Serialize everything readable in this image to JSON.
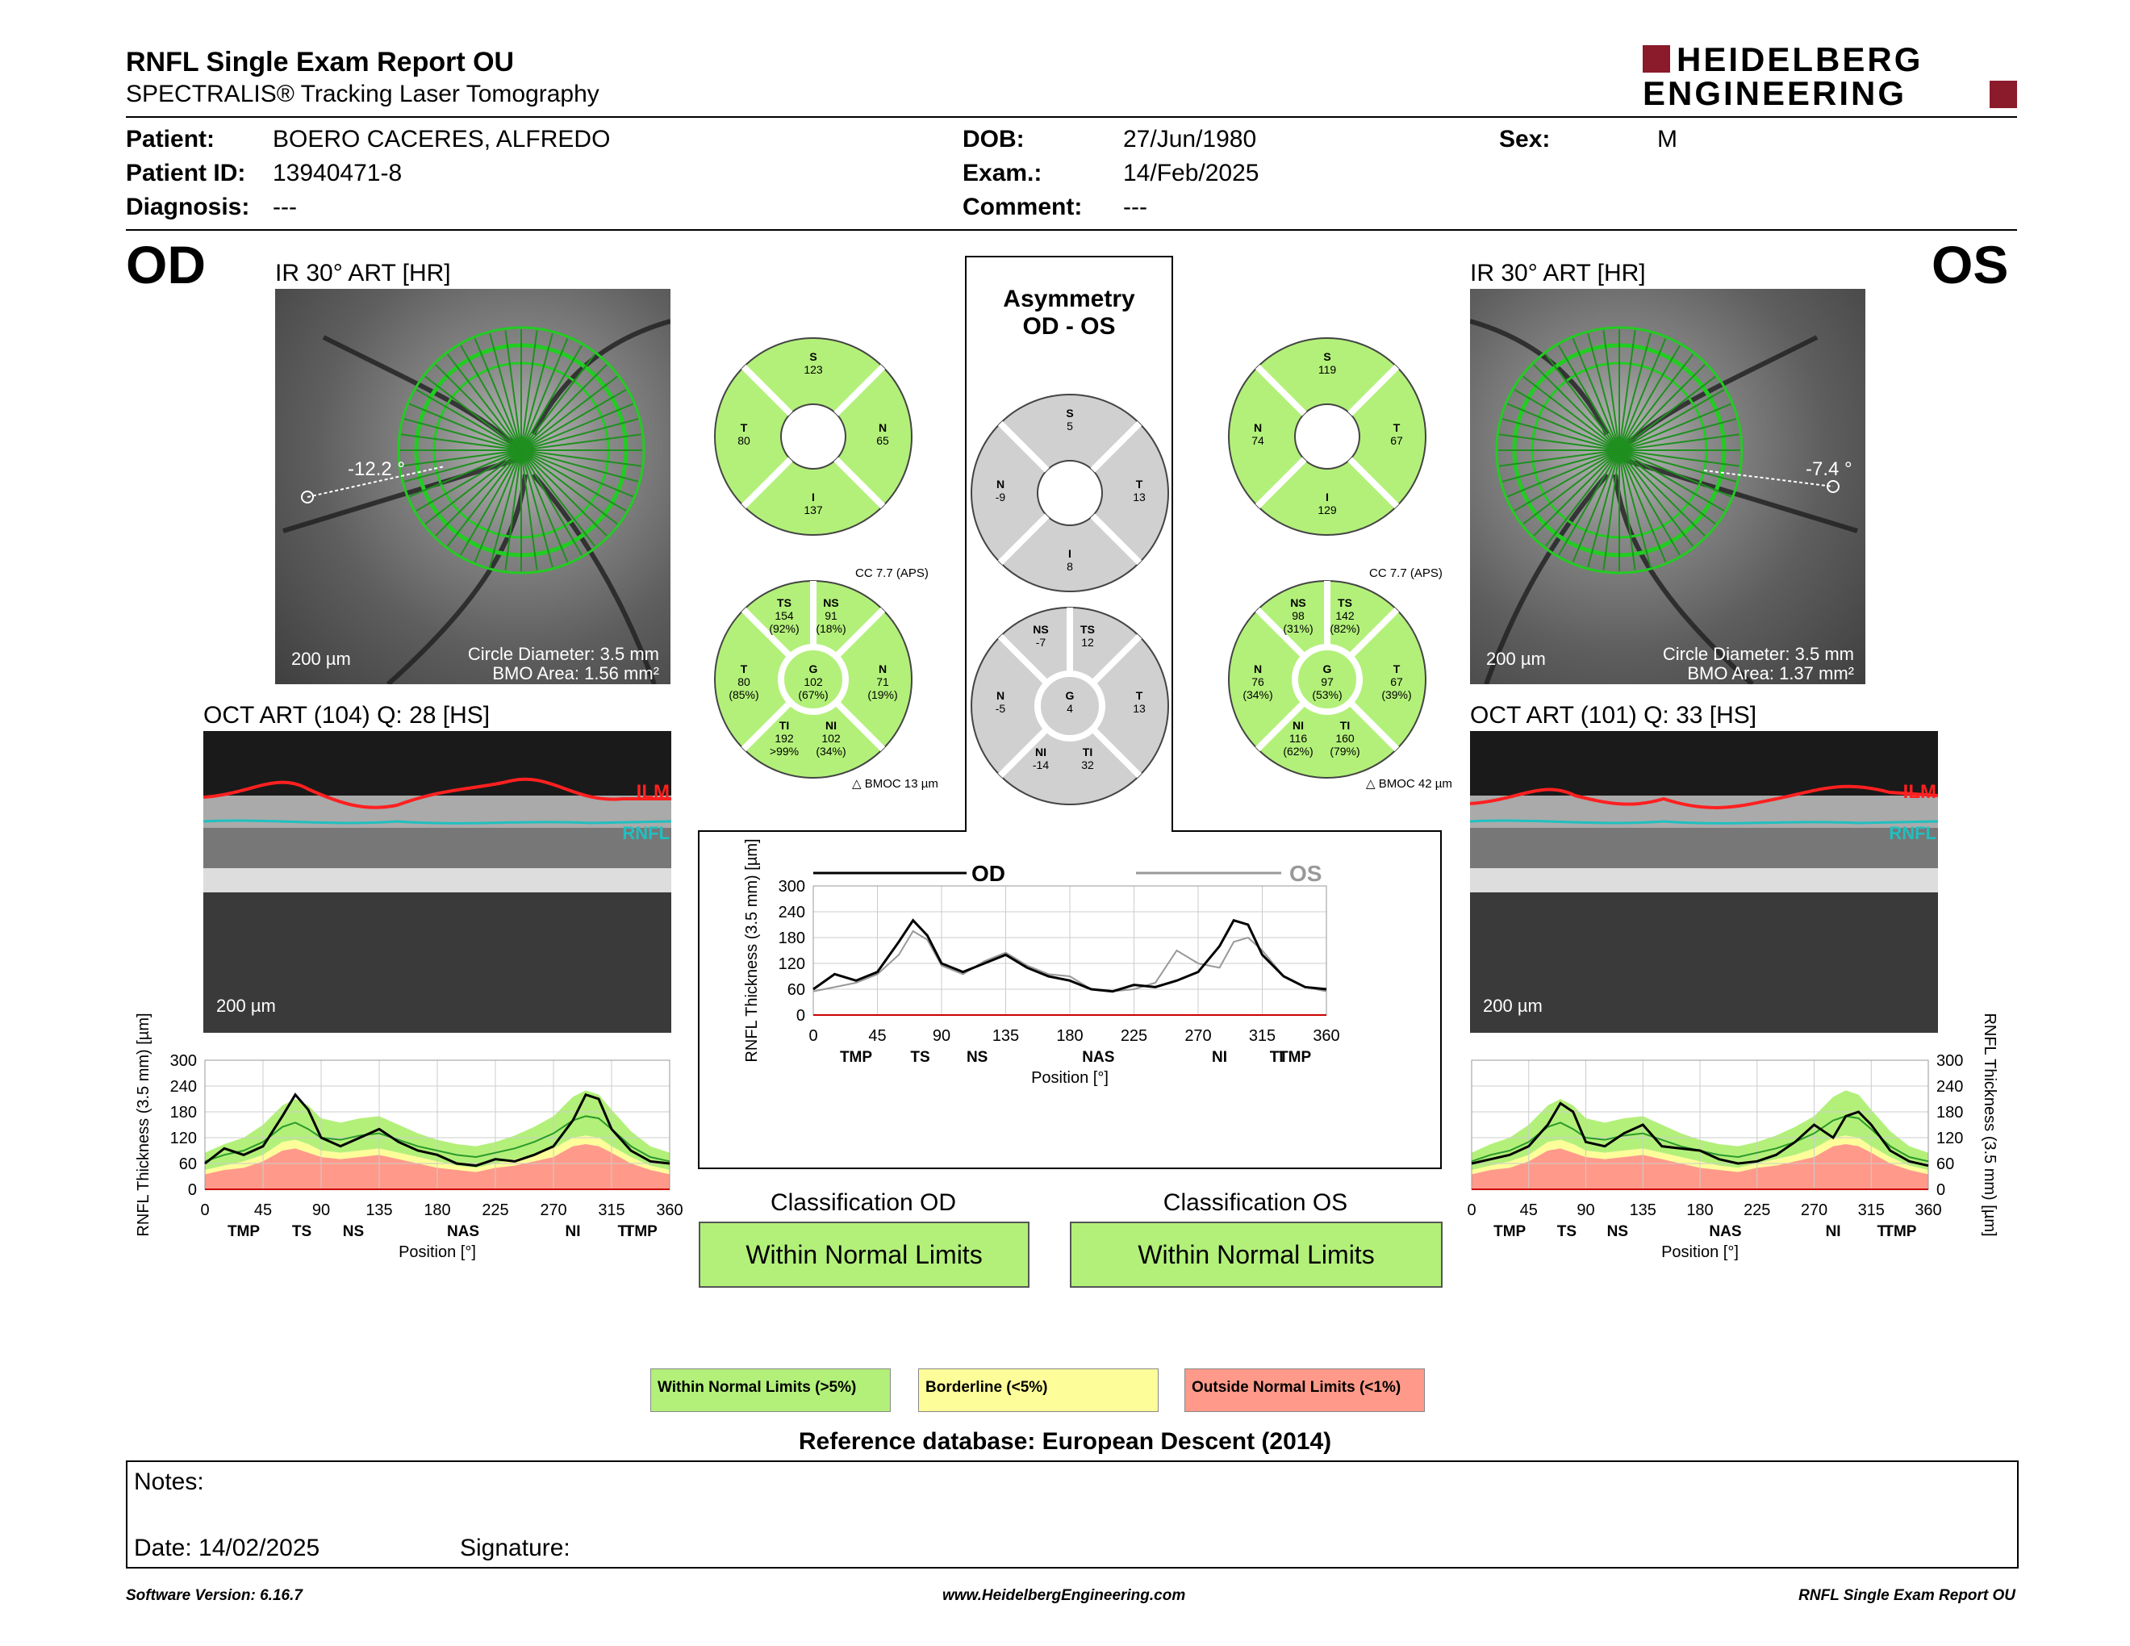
{
  "header": {
    "title": "RNFL Single Exam Report OU",
    "subtitle": "SPECTRALIS® Tracking Laser Tomography",
    "logo_line1": "HEIDELBERG",
    "logo_line2": "ENGINEERING"
  },
  "patient": {
    "patient_label": "Patient:",
    "patient_value": "BOERO CACERES, ALFREDO",
    "id_label": "Patient ID:",
    "id_value": "13940471-8",
    "diagnosis_label": "Diagnosis:",
    "diagnosis_value": "---",
    "dob_label": "DOB:",
    "dob_value": "27/Jun/1980",
    "exam_label": "Exam.:",
    "exam_value": "14/Feb/2025",
    "comment_label": "Comment:",
    "comment_value": "---",
    "sex_label": "Sex:",
    "sex_value": "M"
  },
  "od": {
    "eye": "OD",
    "ir_title": "IR 30° ART [HR]",
    "angle": "-12.2 °",
    "scale": "200 µm",
    "circle_diameter": "Circle Diameter: 3.5 mm",
    "bmo_area": "BMO Area: 1.56 mm²",
    "oct_title": "OCT ART (104) Q: 28 [HS]",
    "oct_scale": "200 µm",
    "ilm": "ILM",
    "rnfl": "RNFL",
    "cc": "CC 7.7 (APS)",
    "bmoc": "BMOC 13 µm",
    "classification_title": "Classification OD",
    "classification": "Within Normal Limits",
    "quad": {
      "S": "123",
      "T": "80",
      "N": "65",
      "I": "137"
    },
    "sect": {
      "TS": [
        "154",
        "(92%)"
      ],
      "NS": [
        "91",
        "(18%)"
      ],
      "T": [
        "80",
        "(85%)"
      ],
      "G": [
        "102",
        "(67%)"
      ],
      "N": [
        "71",
        "(19%)"
      ],
      "TI": [
        "192",
        ">99%"
      ],
      "NI": [
        "102",
        "(34%)"
      ]
    }
  },
  "os": {
    "eye": "OS",
    "ir_title": "IR 30° ART [HR]",
    "angle": "-7.4 °",
    "scale": "200 µm",
    "circle_diameter": "Circle Diameter: 3.5 mm",
    "bmo_area": "BMO Area: 1.37 mm²",
    "oct_title": "OCT ART (101) Q: 33 [HS]",
    "oct_scale": "200 µm",
    "ilm": "ILM",
    "rnfl": "RNFL",
    "cc": "CC 7.7 (APS)",
    "bmoc": "BMOC 42 µm",
    "classification_title": "Classification OS",
    "classification": "Within Normal Limits",
    "quad": {
      "S": "119",
      "N": "74",
      "T": "67",
      "I": "129"
    },
    "sect": {
      "NS": [
        "98",
        "(31%)"
      ],
      "TS": [
        "142",
        "(82%)"
      ],
      "N": [
        "76",
        "(34%)"
      ],
      "G": [
        "97",
        "(53%)"
      ],
      "T": [
        "67",
        "(39%)"
      ],
      "NI": [
        "116",
        "(62%)"
      ],
      "TI": [
        "160",
        "(79%)"
      ]
    }
  },
  "asym": {
    "title1": "Asymmetry",
    "title2": "OD - OS",
    "quad": {
      "S": "5",
      "N": "-9",
      "T": "13",
      "I": "8"
    },
    "sect": {
      "NS": "-7",
      "TS": "12",
      "N": "-5",
      "G": "4",
      "T": "13",
      "NI": "-14",
      "TI": "32"
    }
  },
  "colors": {
    "normal": "#b3f07a",
    "borderline": "#fdfd9a",
    "outside": "#ff9a8a",
    "asym": "#d0d0d0",
    "od_line": "#000000",
    "os_line": "#999999",
    "mean": "#2a9a2a"
  },
  "chart_data": [
    {
      "type": "line",
      "name": "rnfl-profile-od",
      "xlabel": "Position [°]",
      "ylabel": "RNFL Thickness (3.5 mm) [µm]",
      "xlim": [
        0,
        360
      ],
      "ylim": [
        0,
        300
      ],
      "xticks": [
        0,
        45,
        90,
        135,
        180,
        225,
        270,
        315,
        360
      ],
      "yticks": [
        0,
        60,
        120,
        180,
        240,
        300
      ],
      "sectors": [
        "TMP",
        "TS",
        "NS",
        "NAS",
        "NI",
        "TI",
        "TMP"
      ],
      "x": [
        0,
        15,
        30,
        45,
        60,
        70,
        80,
        90,
        105,
        120,
        135,
        150,
        165,
        180,
        195,
        210,
        225,
        240,
        255,
        270,
        285,
        295,
        305,
        315,
        330,
        345,
        360
      ],
      "measured": [
        60,
        95,
        80,
        100,
        170,
        220,
        185,
        120,
        100,
        120,
        140,
        110,
        90,
        80,
        60,
        55,
        70,
        65,
        80,
        100,
        160,
        220,
        210,
        140,
        90,
        65,
        60
      ],
      "mean": [
        65,
        80,
        90,
        110,
        145,
        155,
        140,
        120,
        115,
        125,
        130,
        115,
        100,
        90,
        80,
        75,
        85,
        95,
        110,
        130,
        160,
        170,
        165,
        140,
        100,
        75,
        65
      ],
      "p5": [
        45,
        55,
        65,
        80,
        110,
        115,
        105,
        90,
        85,
        90,
        95,
        85,
        75,
        65,
        55,
        50,
        60,
        70,
        80,
        95,
        120,
        125,
        120,
        100,
        75,
        55,
        45
      ],
      "p1": [
        35,
        45,
        50,
        65,
        90,
        95,
        85,
        75,
        70,
        75,
        80,
        70,
        60,
        50,
        45,
        40,
        50,
        55,
        65,
        75,
        100,
        105,
        100,
        85,
        60,
        45,
        35
      ],
      "p95": [
        85,
        105,
        120,
        150,
        195,
        210,
        195,
        165,
        155,
        165,
        170,
        150,
        130,
        115,
        105,
        100,
        110,
        125,
        145,
        170,
        215,
        230,
        220,
        185,
        135,
        100,
        85
      ]
    },
    {
      "type": "line",
      "name": "rnfl-profile-os",
      "xlabel": "Position [°]",
      "ylabel": "RNFL Thickness (3.5 mm) [µm]",
      "xlim": [
        0,
        360
      ],
      "ylim": [
        0,
        300
      ],
      "xticks": [
        0,
        45,
        90,
        135,
        180,
        225,
        270,
        315,
        360
      ],
      "yticks": [
        0,
        60,
        120,
        180,
        240,
        300
      ],
      "sectors": [
        "TMP",
        "TS",
        "NS",
        "NAS",
        "NI",
        "TI",
        "TMP"
      ],
      "x": [
        0,
        15,
        30,
        45,
        60,
        70,
        80,
        90,
        105,
        120,
        135,
        150,
        165,
        180,
        195,
        210,
        225,
        240,
        255,
        270,
        285,
        295,
        305,
        315,
        330,
        345,
        360
      ],
      "measured": [
        60,
        70,
        80,
        100,
        150,
        200,
        180,
        110,
        100,
        130,
        150,
        100,
        95,
        90,
        70,
        60,
        65,
        80,
        110,
        150,
        120,
        170,
        180,
        150,
        90,
        65,
        55
      ],
      "mean": [
        65,
        80,
        90,
        110,
        145,
        155,
        140,
        120,
        115,
        125,
        130,
        115,
        100,
        90,
        80,
        75,
        85,
        95,
        110,
        130,
        160,
        170,
        165,
        140,
        100,
        75,
        65
      ],
      "p5": [
        45,
        55,
        65,
        80,
        110,
        115,
        105,
        90,
        85,
        90,
        95,
        85,
        75,
        65,
        55,
        50,
        60,
        70,
        80,
        95,
        120,
        125,
        120,
        100,
        75,
        55,
        45
      ],
      "p1": [
        35,
        45,
        50,
        65,
        90,
        95,
        85,
        75,
        70,
        75,
        80,
        70,
        60,
        50,
        45,
        40,
        50,
        55,
        65,
        75,
        100,
        105,
        100,
        85,
        60,
        45,
        35
      ],
      "p95": [
        85,
        105,
        120,
        150,
        195,
        210,
        195,
        165,
        155,
        165,
        170,
        150,
        130,
        115,
        105,
        100,
        110,
        125,
        145,
        170,
        215,
        230,
        220,
        185,
        135,
        100,
        85
      ]
    },
    {
      "type": "line",
      "name": "rnfl-profile-ou",
      "xlabel": "Position [°]",
      "ylabel": "RNFL Thickness (3.5 mm) [µm]",
      "xlim": [
        0,
        360
      ],
      "ylim": [
        0,
        300
      ],
      "xticks": [
        0,
        45,
        90,
        135,
        180,
        225,
        270,
        315,
        360
      ],
      "yticks": [
        0,
        60,
        120,
        180,
        240,
        300
      ],
      "sectors": [
        "TMP",
        "TS",
        "NS",
        "NAS",
        "NI",
        "TI",
        "TMP"
      ],
      "legend": [
        "OD",
        "OS"
      ],
      "x": [
        0,
        15,
        30,
        45,
        60,
        70,
        80,
        90,
        105,
        120,
        135,
        150,
        165,
        180,
        195,
        210,
        225,
        240,
        255,
        270,
        285,
        295,
        305,
        315,
        330,
        345,
        360
      ],
      "od": [
        60,
        95,
        80,
        100,
        170,
        220,
        185,
        120,
        100,
        120,
        140,
        110,
        90,
        80,
        60,
        55,
        70,
        65,
        80,
        100,
        160,
        220,
        210,
        140,
        90,
        65,
        60
      ],
      "os": [
        55,
        65,
        75,
        95,
        140,
        195,
        175,
        115,
        95,
        125,
        145,
        115,
        95,
        90,
        60,
        55,
        60,
        75,
        150,
        120,
        110,
        170,
        180,
        150,
        90,
        65,
        55
      ]
    }
  ],
  "legend": {
    "normal": "Within Normal Limits (>5%)",
    "borderline": "Borderline (<5%)",
    "outside": "Outside Normal Limits (<1%)"
  },
  "reference": "Reference database: European Descent (2014)",
  "notes": {
    "notes_label": "Notes:",
    "date_label": "Date: 14/02/2025",
    "signature_label": "Signature:"
  },
  "footer": {
    "software": "Software Version: 6.16.7",
    "website": "www.HeidelbergEngineering.com",
    "report": "RNFL Single Exam Report OU"
  }
}
